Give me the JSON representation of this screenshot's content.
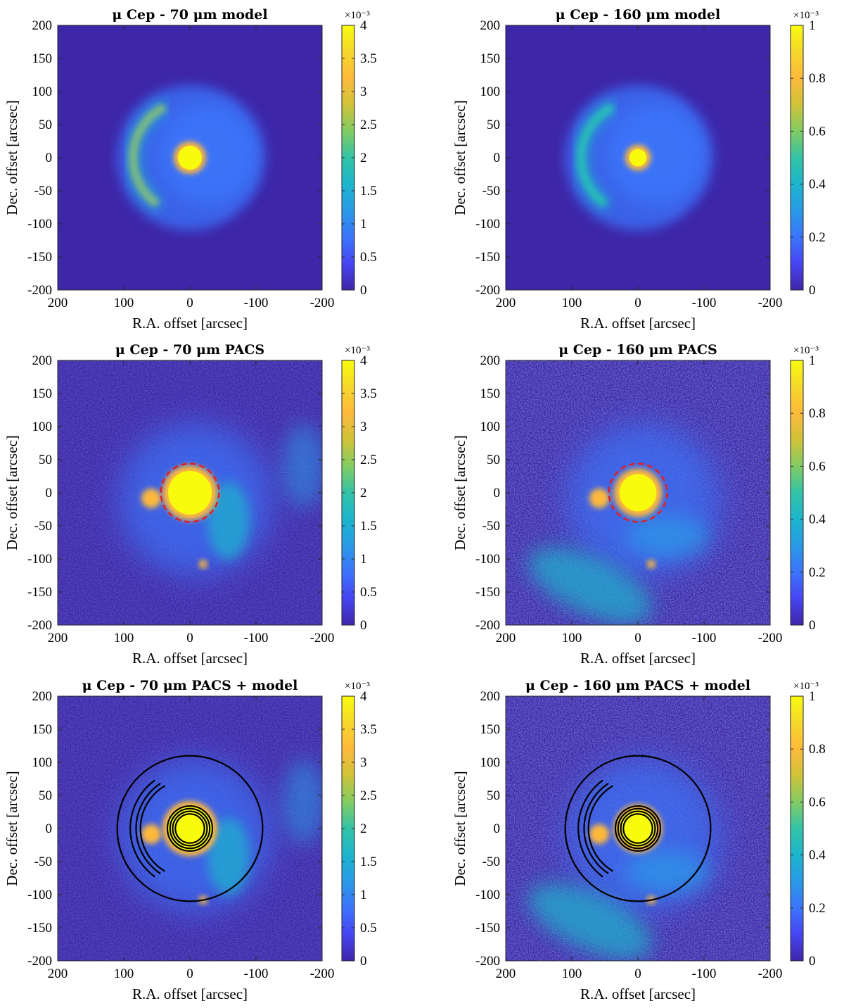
{
  "figure": {
    "x_label": "R.A. offset [arcsec]",
    "y_label": "Dec. offset [arcsec]"
  },
  "chart_data": [
    {
      "type": "heatmap",
      "title": "μ Cep - 70 μm model",
      "xlabel": "R.A. offset [arcsec]",
      "ylabel": "Dec. offset [arcsec]",
      "xlim": [
        200,
        -200
      ],
      "ylim": [
        -200,
        200
      ],
      "x_ticks": [
        "200",
        "100",
        "0",
        "-100",
        "-200"
      ],
      "y_ticks": [
        "200",
        "150",
        "100",
        "50",
        "0",
        "-50",
        "-100",
        "-150",
        "-200"
      ],
      "colorbar": {
        "range": [
          0,
          0.004
        ],
        "multiplier": "×10⁻³",
        "ticks": [
          "4",
          "3.5",
          "3",
          "2.5",
          "2",
          "1.5",
          "1",
          "0.5",
          "0"
        ]
      },
      "image": "model",
      "features": {
        "star_center_arcsec": [
          0,
          0
        ],
        "shell_radius_arcsec": 110,
        "arc_east_edge_arcsec": 70
      },
      "contours": false,
      "dashed_circle_radius_arcsec": null
    },
    {
      "type": "heatmap",
      "title": "μ Cep - 160 μm model",
      "xlabel": "R.A. offset [arcsec]",
      "ylabel": "Dec. offset [arcsec]",
      "xlim": [
        200,
        -200
      ],
      "ylim": [
        -200,
        200
      ],
      "x_ticks": [
        "200",
        "100",
        "0",
        "-100",
        "-200"
      ],
      "y_ticks": [
        "200",
        "150",
        "100",
        "50",
        "0",
        "-50",
        "-100",
        "-150",
        "-200"
      ],
      "colorbar": {
        "range": [
          0,
          0.001
        ],
        "multiplier": "×10⁻³",
        "ticks": [
          "1",
          "0.8",
          "0.6",
          "0.4",
          "0.2",
          "0"
        ]
      },
      "image": "model",
      "features": {
        "star_center_arcsec": [
          0,
          0
        ],
        "shell_radius_arcsec": 110,
        "arc_east_edge_arcsec": 70
      },
      "contours": false,
      "dashed_circle_radius_arcsec": null
    },
    {
      "type": "heatmap",
      "title": "μ Cep - 70 μm PACS",
      "xlabel": "R.A. offset [arcsec]",
      "ylabel": "Dec. offset [arcsec]",
      "xlim": [
        200,
        -200
      ],
      "ylim": [
        -200,
        200
      ],
      "x_ticks": [
        "200",
        "100",
        "0",
        "-100",
        "-200"
      ],
      "y_ticks": [
        "200",
        "150",
        "100",
        "50",
        "0",
        "-50",
        "-100",
        "-150",
        "-200"
      ],
      "colorbar": {
        "range": [
          0,
          0.004
        ],
        "multiplier": "×10⁻³",
        "ticks": [
          "4",
          "3.5",
          "3",
          "2.5",
          "2",
          "1.5",
          "1",
          "0.5",
          "0"
        ]
      },
      "image": "pacs70",
      "features": {
        "star_center_arcsec": [
          0,
          0
        ],
        "point_source_arcsec": [
          -20,
          -108
        ]
      },
      "contours": false,
      "dashed_circle_radius_arcsec": 44
    },
    {
      "type": "heatmap",
      "title": "μ Cep - 160 μm PACS",
      "xlabel": "R.A. offset [arcsec]",
      "ylabel": "Dec. offset [arcsec]",
      "xlim": [
        200,
        -200
      ],
      "ylim": [
        -200,
        200
      ],
      "x_ticks": [
        "200",
        "100",
        "0",
        "-100",
        "-200"
      ],
      "y_ticks": [
        "200",
        "150",
        "100",
        "50",
        "0",
        "-50",
        "-100",
        "-150",
        "-200"
      ],
      "colorbar": {
        "range": [
          0,
          0.001
        ],
        "multiplier": "×10⁻³",
        "ticks": [
          "1",
          "0.8",
          "0.6",
          "0.4",
          "0.2",
          "0"
        ]
      },
      "image": "pacs160",
      "features": {
        "star_center_arcsec": [
          0,
          0
        ],
        "point_source_arcsec": [
          -20,
          -108
        ]
      },
      "contours": false,
      "dashed_circle_radius_arcsec": 44
    },
    {
      "type": "heatmap",
      "title": "μ Cep - 70 μm PACS + model",
      "xlabel": "R.A. offset [arcsec]",
      "ylabel": "Dec. offset [arcsec]",
      "xlim": [
        200,
        -200
      ],
      "ylim": [
        -200,
        200
      ],
      "x_ticks": [
        "200",
        "100",
        "0",
        "-100",
        "-200"
      ],
      "y_ticks": [
        "200",
        "150",
        "100",
        "50",
        "0",
        "-50",
        "-100",
        "-150",
        "-200"
      ],
      "colorbar": {
        "range": [
          0,
          0.004
        ],
        "multiplier": "×10⁻³",
        "ticks": [
          "4",
          "3.5",
          "3",
          "2.5",
          "2",
          "1.5",
          "1",
          "0.5",
          "0"
        ]
      },
      "image": "pacs70",
      "features": {
        "star_center_arcsec": [
          0,
          0
        ],
        "point_source_arcsec": [
          -20,
          -108
        ]
      },
      "contours": true,
      "dashed_circle_radius_arcsec": null
    },
    {
      "type": "heatmap",
      "title": "μ Cep - 160 μm PACS + model",
      "xlabel": "R.A. offset [arcsec]",
      "ylabel": "Dec. offset [arcsec]",
      "xlim": [
        200,
        -200
      ],
      "ylim": [
        -200,
        200
      ],
      "x_ticks": [
        "200",
        "100",
        "0",
        "-100",
        "-200"
      ],
      "y_ticks": [
        "200",
        "150",
        "100",
        "50",
        "0",
        "-50",
        "-100",
        "-150",
        "-200"
      ],
      "colorbar": {
        "range": [
          0,
          0.001
        ],
        "multiplier": "×10⁻³",
        "ticks": [
          "1",
          "0.8",
          "0.6",
          "0.4",
          "0.2",
          "0"
        ]
      },
      "image": "pacs160",
      "features": {
        "star_center_arcsec": [
          0,
          0
        ],
        "point_source_arcsec": [
          -20,
          -108
        ]
      },
      "contours": true,
      "dashed_circle_radius_arcsec": null
    }
  ],
  "colors": {
    "colormap": [
      "#3e26a8",
      "#4745f2",
      "#3b74fb",
      "#2a9ae7",
      "#1bb5cd",
      "#33c3a6",
      "#81cc63",
      "#cfc33a",
      "#feb93b",
      "#f6d72b",
      "#f9fb0e"
    ],
    "contour": "#000000",
    "dashed_circle": "#e02020"
  }
}
